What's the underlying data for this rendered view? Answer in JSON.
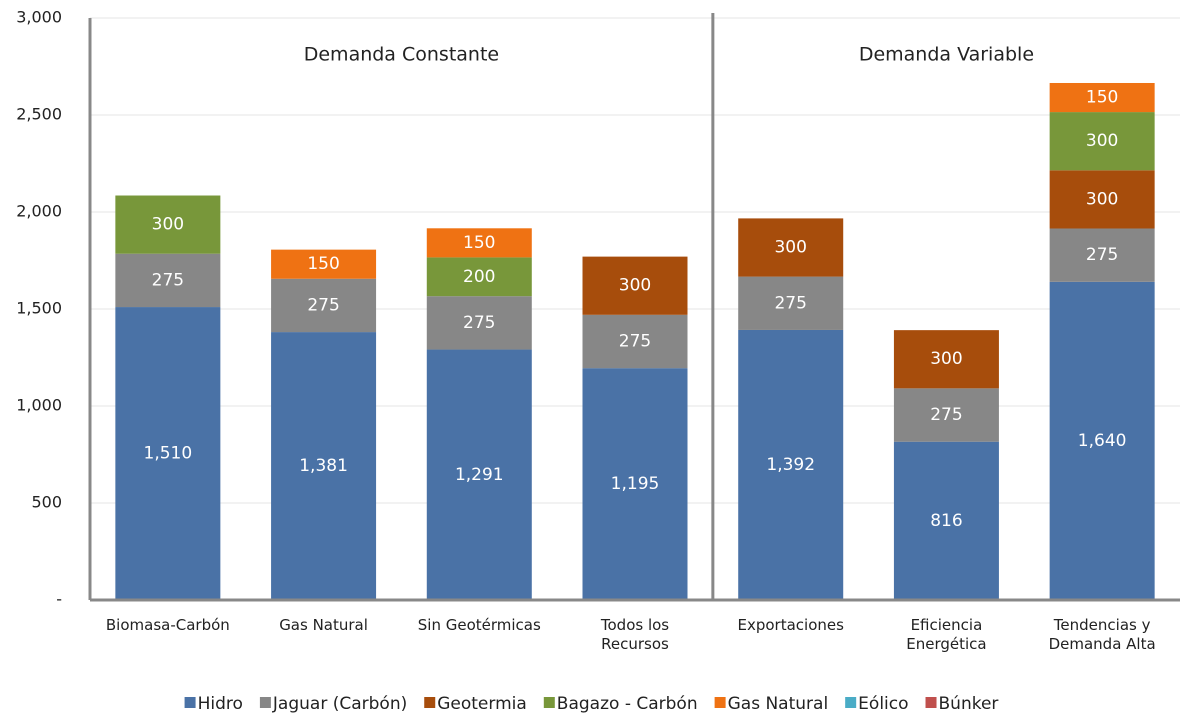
{
  "chart_data": {
    "type": "stacked_bar",
    "categories": [
      "Biomasa-Carbón",
      "Gas Natural",
      "Sin Geotérmicas",
      "Todos los Recursos",
      "Exportaciones",
      "Eficiencia Energética",
      "Tendencias y Demanda Alta"
    ],
    "annotations": [
      "Demanda Constante",
      "Demanda Variable"
    ],
    "series": [
      {
        "name": "Hidro",
        "color": "#4a72a6",
        "values": [
          1510,
          1381,
          1291,
          1195,
          1392,
          816,
          1640
        ],
        "value_labels": [
          "1,510",
          "1,381",
          "1,291",
          "1,195",
          "1,392",
          "816",
          "1,640"
        ]
      },
      {
        "name": "Jaguar (Carbón)",
        "color": "#878787",
        "values": [
          275,
          275,
          275,
          275,
          275,
          275,
          275
        ]
      },
      {
        "name": "Geotermia",
        "color": "#a74d0c",
        "values": [
          null,
          null,
          null,
          300,
          300,
          300,
          300
        ]
      },
      {
        "name": "Bagazo - Carbón",
        "color": "#78973a",
        "values": [
          300,
          null,
          200,
          null,
          null,
          null,
          300
        ]
      },
      {
        "name": "Gas Natural",
        "color": "#ef7213",
        "values": [
          null,
          150,
          150,
          null,
          null,
          null,
          150
        ]
      },
      {
        "name": "Eólico",
        "color": "#4aacc6",
        "values": [
          null,
          null,
          null,
          null,
          null,
          null,
          null
        ]
      },
      {
        "name": "Búnker",
        "color": "#c0504d",
        "values": [
          null,
          null,
          null,
          null,
          null,
          null,
          null
        ]
      }
    ],
    "ylim": [
      0,
      3000
    ],
    "yticks": [
      {
        "value": 0,
        "label": "-"
      },
      500,
      {
        "value": 1000,
        "label": "1,000"
      },
      {
        "value": 1500,
        "label": "1,500"
      },
      {
        "value": 2000,
        "label": "2,000"
      },
      {
        "value": 2500,
        "label": "2,500"
      },
      {
        "value": 3000,
        "label": "3,000"
      }
    ],
    "grid": true,
    "legend": "bottom"
  }
}
